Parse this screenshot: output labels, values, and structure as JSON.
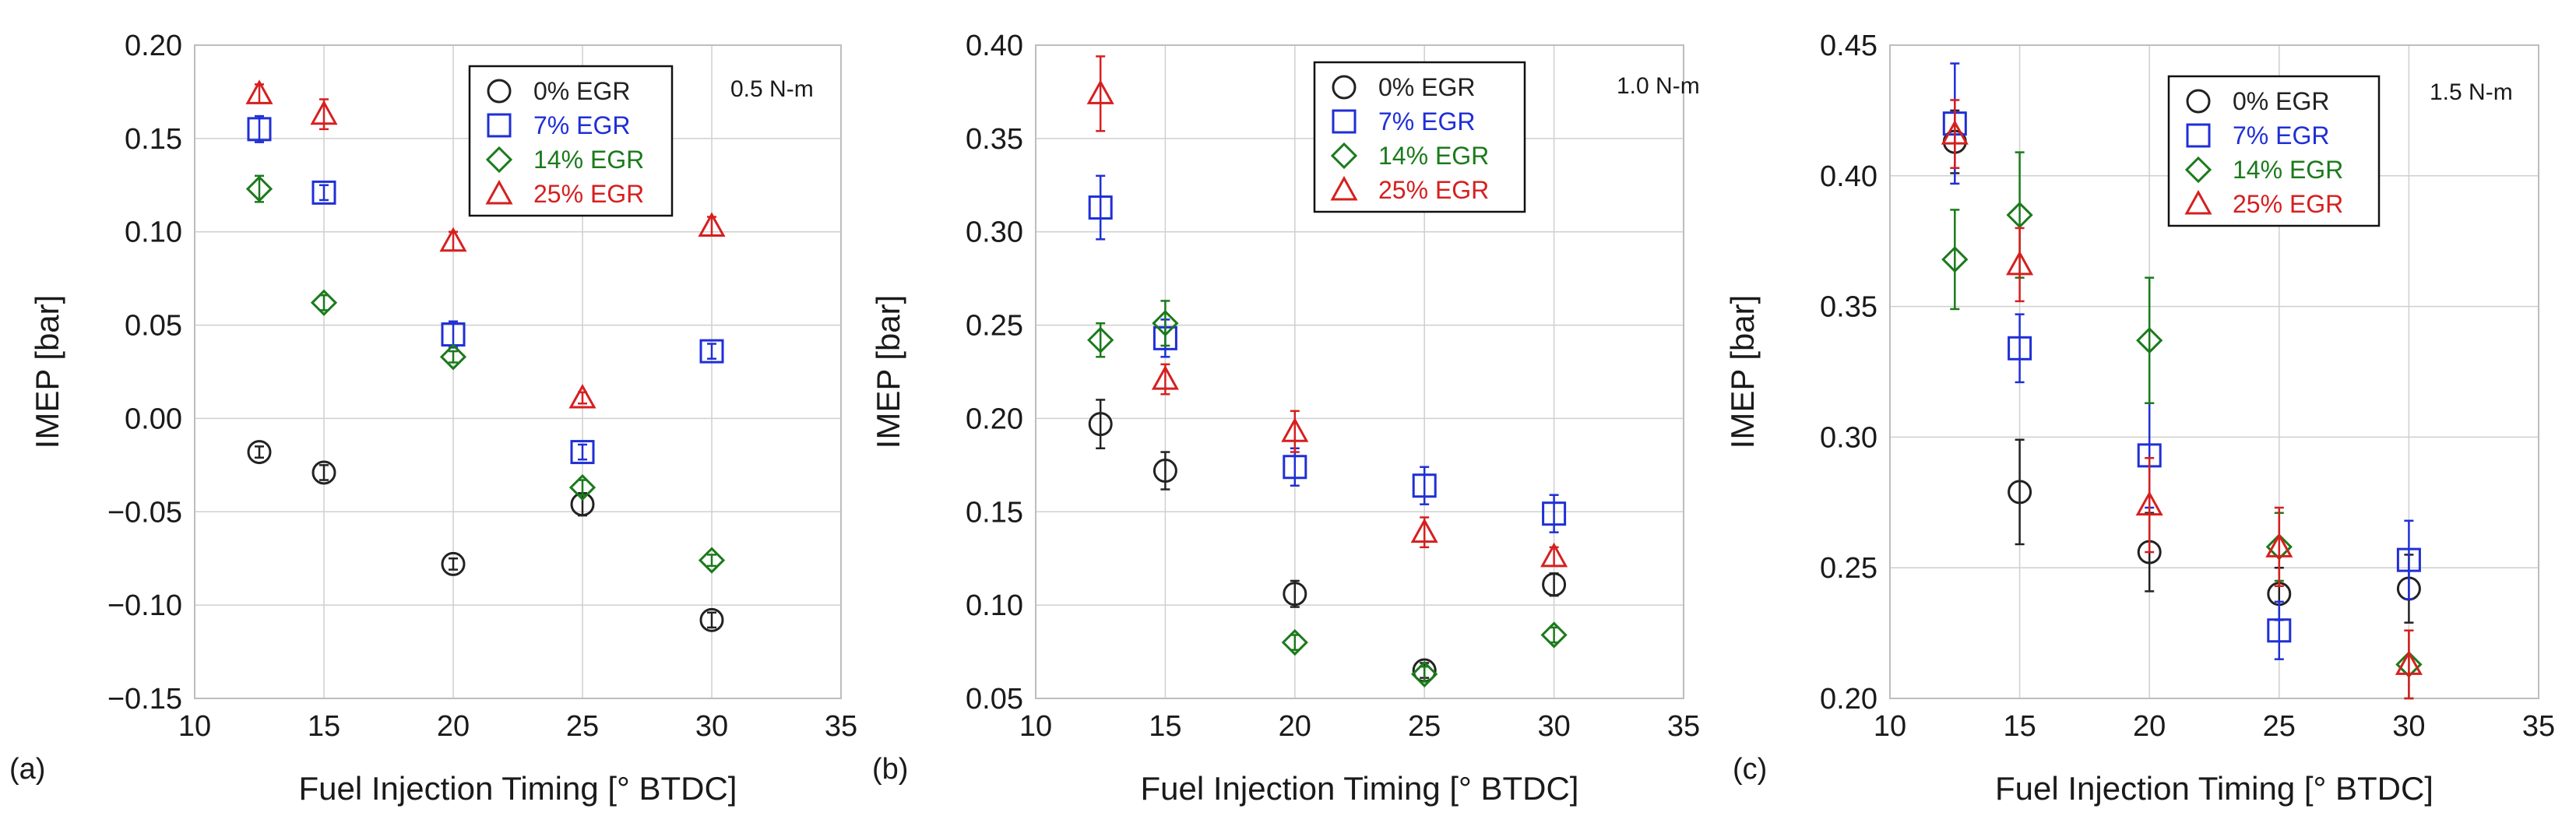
{
  "figure": {
    "colors": {
      "0% EGR": "#222222",
      "7% EGR": "#1f2fd6",
      "14% EGR": "#1b7a1b",
      "25% EGR": "#d61f1f"
    },
    "markers": {
      "0% EGR": "circle",
      "7% EGR": "square",
      "14% EGR": "diamond",
      "25% EGR": "triangle"
    }
  },
  "chart_data": [
    {
      "type": "scatter",
      "panel_label": "(a)",
      "load_label": "0.5 N-m",
      "xlabel": "Fuel Injection Timing [° BTDC]",
      "ylabel": "IMEP [bar]",
      "xlim": [
        10,
        35
      ],
      "ylim": [
        -0.15,
        0.2
      ],
      "xticks": [
        10,
        15,
        20,
        25,
        30,
        35
      ],
      "xtick_labels": [
        "10",
        "15",
        "20",
        "25",
        "30",
        "35"
      ],
      "yticks": [
        -0.15,
        -0.1,
        -0.05,
        0,
        0.05,
        0.1,
        0.15,
        0.2
      ],
      "ytick_labels": [
        "−0.15",
        "−0.10",
        "−0.05",
        "0.00",
        "0.05",
        "0.10",
        "0.15",
        "0.20"
      ],
      "grid": true,
      "legend_position": "top-right",
      "series": [
        {
          "name": "0% EGR",
          "x": [
            12.5,
            15,
            20,
            25,
            30
          ],
          "y": [
            -0.018,
            -0.029,
            -0.078,
            -0.046,
            -0.108
          ],
          "err": [
            0.003,
            0.004,
            0.003,
            0.006,
            0.004
          ]
        },
        {
          "name": "7% EGR",
          "x": [
            12.5,
            15,
            25,
            30,
            20
          ],
          "y": [
            0.155,
            0.121,
            -0.018,
            0.036,
            0.045
          ],
          "err": [
            0.007,
            0.004,
            0.004,
            0.004,
            0.007
          ]
        },
        {
          "name": "14% EGR",
          "x": [
            12.5,
            15,
            20,
            25,
            30
          ],
          "y": [
            0.123,
            0.062,
            0.033,
            -0.037,
            -0.076
          ],
          "err": [
            0.007,
            0.004,
            0.003,
            0.004,
            0.003
          ]
        },
        {
          "name": "25% EGR",
          "x": [
            12.5,
            15,
            20,
            25,
            30
          ],
          "y": [
            0.174,
            0.163,
            0.095,
            0.011,
            0.103
          ],
          "err": [
            0.005,
            0.008,
            0.005,
            0.003,
            0.005
          ]
        }
      ]
    },
    {
      "type": "scatter",
      "panel_label": "(b)",
      "load_label": "1.0 N-m",
      "xlabel": "Fuel Injection Timing [° BTDC]",
      "ylabel": "IMEP [bar]",
      "xlim": [
        10,
        35
      ],
      "ylim": [
        0.05,
        0.4
      ],
      "xticks": [
        10,
        15,
        20,
        25,
        30,
        35
      ],
      "xtick_labels": [
        "10",
        "15",
        "20",
        "25",
        "30",
        "35"
      ],
      "yticks": [
        0.05,
        0.1,
        0.15,
        0.2,
        0.25,
        0.3,
        0.35,
        0.4
      ],
      "ytick_labels": [
        "0.05",
        "0.10",
        "0.15",
        "0.20",
        "0.25",
        "0.30",
        "0.35",
        "0.40"
      ],
      "grid": true,
      "legend_position": "top-right",
      "series": [
        {
          "name": "0% EGR",
          "x": [
            12.5,
            15,
            20,
            25,
            30
          ],
          "y": [
            0.197,
            0.172,
            0.106,
            0.065,
            0.111
          ],
          "err": [
            0.013,
            0.01,
            0.007,
            0.004,
            0.006
          ]
        },
        {
          "name": "7% EGR",
          "x": [
            12.5,
            15,
            20,
            25,
            30
          ],
          "y": [
            0.313,
            0.243,
            0.174,
            0.164,
            0.149
          ],
          "err": [
            0.017,
            0.01,
            0.01,
            0.01,
            0.01
          ]
        },
        {
          "name": "14% EGR",
          "x": [
            12.5,
            15,
            20,
            25,
            30
          ],
          "y": [
            0.242,
            0.251,
            0.08,
            0.063,
            0.084
          ],
          "err": [
            0.009,
            0.012,
            0.004,
            0.004,
            0.004
          ]
        },
        {
          "name": "25% EGR",
          "x": [
            12.5,
            15,
            20,
            25,
            30
          ],
          "y": [
            0.374,
            0.221,
            0.193,
            0.139,
            0.126
          ],
          "err": [
            0.02,
            0.008,
            0.011,
            0.008,
            0.005
          ]
        }
      ]
    },
    {
      "type": "scatter",
      "panel_label": "(c)",
      "load_label": "1.5 N-m",
      "xlabel": "Fuel Injection Timing [° BTDC]",
      "ylabel": "IMEP [bar]",
      "xlim": [
        10,
        35
      ],
      "ylim": [
        0.2,
        0.45
      ],
      "xticks": [
        10,
        15,
        20,
        25,
        30,
        35
      ],
      "xtick_labels": [
        "10",
        "15",
        "20",
        "25",
        "30",
        "35"
      ],
      "yticks": [
        0.2,
        0.25,
        0.3,
        0.35,
        0.4,
        0.45
      ],
      "ytick_labels": [
        "0.20",
        "0.25",
        "0.30",
        "0.35",
        "0.40",
        "0.45"
      ],
      "grid": true,
      "legend_position": "top-right",
      "series": [
        {
          "name": "0% EGR",
          "x": [
            12.5,
            15,
            20,
            25,
            30
          ],
          "y": [
            0.413,
            0.279,
            0.256,
            0.24,
            0.242
          ],
          "err": [
            0.012,
            0.02,
            0.015,
            0.01,
            0.013
          ]
        },
        {
          "name": "7% EGR",
          "x": [
            12.5,
            15,
            20,
            25,
            30
          ],
          "y": [
            0.42,
            0.334,
            0.293,
            0.226,
            0.253
          ],
          "err": [
            0.023,
            0.013,
            0.02,
            0.011,
            0.015
          ]
        },
        {
          "name": "14% EGR",
          "x": [
            12.5,
            15,
            20,
            25,
            30
          ],
          "y": [
            0.368,
            0.385,
            0.337,
            0.258,
            0.213
          ],
          "err": [
            0.019,
            0.024,
            0.024,
            0.013,
            0.013
          ]
        },
        {
          "name": "25% EGR",
          "x": [
            12.5,
            15,
            20,
            25,
            30
          ],
          "y": [
            0.416,
            0.366,
            0.274,
            0.258,
            0.213
          ],
          "err": [
            0.013,
            0.014,
            0.018,
            0.015,
            0.013
          ]
        }
      ]
    }
  ]
}
